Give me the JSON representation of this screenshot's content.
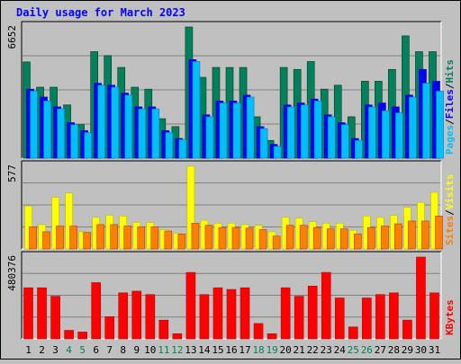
{
  "chart_data": {
    "type": "bar",
    "title": "Daily usage for March 2023",
    "categories": [
      "1",
      "2",
      "3",
      "4",
      "5",
      "6",
      "7",
      "8",
      "9",
      "10",
      "11",
      "12",
      "13",
      "14",
      "15",
      "16",
      "17",
      "18",
      "19",
      "20",
      "21",
      "22",
      "23",
      "24",
      "25",
      "26",
      "27",
      "28",
      "29",
      "30",
      "31"
    ],
    "weekend_days": [
      "4",
      "5",
      "11",
      "12",
      "18",
      "19",
      "25",
      "26"
    ],
    "panels": [
      {
        "id": "top",
        "max_label": "6652",
        "ylim": [
          0,
          6652
        ],
        "right_labels": [
          "Pages",
          "Files",
          "Hits"
        ],
        "series": [
          {
            "name": "Hits",
            "color": "#00805C",
            "values": [
              4880,
              3600,
              3600,
              2700,
              1700,
              5400,
              5200,
              4600,
              3600,
              3500,
              2000,
              1600,
              6652,
              4100,
              4600,
              4600,
              4600,
              2100,
              900,
              4600,
              4500,
              4900,
              3500,
              3700,
              2100,
              3900,
              3900,
              4500,
              6200,
              5400,
              5400
            ]
          },
          {
            "name": "Files",
            "color": "#0000FF",
            "values": [
              3500,
              3100,
              2600,
              1800,
              1400,
              3800,
              3700,
              3300,
              2600,
              2600,
              1400,
              1000,
              5000,
              2200,
              2900,
              2900,
              3200,
              1600,
              700,
              2700,
              2800,
              3000,
              2200,
              1800,
              1000,
              2700,
              2800,
              2600,
              3200,
              4500,
              3900
            ]
          },
          {
            "name": "Pages",
            "color": "#00BFFF",
            "values": [
              3400,
              2900,
              2500,
              1700,
              1300,
              3700,
              3600,
              3200,
              2500,
              2500,
              1300,
              950,
              4900,
              2100,
              2800,
              2800,
              3100,
              1500,
              600,
              2600,
              2700,
              2900,
              2100,
              1700,
              900,
              2600,
              2400,
              2300,
              3100,
              3800,
              3400
            ]
          }
        ]
      },
      {
        "id": "middle",
        "max_label": "577",
        "ylim": [
          0,
          577
        ],
        "right_labels": [
          "Sites",
          "Visits"
        ],
        "series": [
          {
            "name": "Visits",
            "color": "#FFFF00",
            "values": [
              300,
              170,
              360,
              390,
              120,
              220,
              235,
              230,
              185,
              185,
              135,
              110,
              577,
              200,
              180,
              180,
              170,
              165,
              120,
              220,
              215,
              190,
              180,
              180,
              130,
              230,
              220,
              235,
              290,
              325,
              395
            ]
          },
          {
            "name": "Sites",
            "color": "#FF8000",
            "values": [
              155,
              120,
              160,
              160,
              115,
              170,
              170,
              160,
              155,
              155,
              125,
              105,
              180,
              165,
              150,
              150,
              145,
              135,
              90,
              165,
              165,
              150,
              140,
              140,
              105,
              150,
              160,
              175,
              195,
              195,
              230
            ]
          }
        ]
      },
      {
        "id": "bottom",
        "max_label": "480376",
        "ylim": [
          0,
          480376
        ],
        "right_labels": [
          "KBytes"
        ],
        "series": [
          {
            "name": "KBytes",
            "color": "#FF0000",
            "values": [
              300000,
              300000,
              250000,
              50000,
              40000,
              330000,
              130000,
              270000,
              280000,
              260000,
              110000,
              30000,
              390000,
              260000,
              300000,
              290000,
              300000,
              90000,
              30000,
              300000,
              250000,
              310000,
              390000,
              240000,
              70000,
              240000,
              260000,
              270000,
              110000,
              480376,
              270000
            ]
          }
        ]
      }
    ]
  }
}
